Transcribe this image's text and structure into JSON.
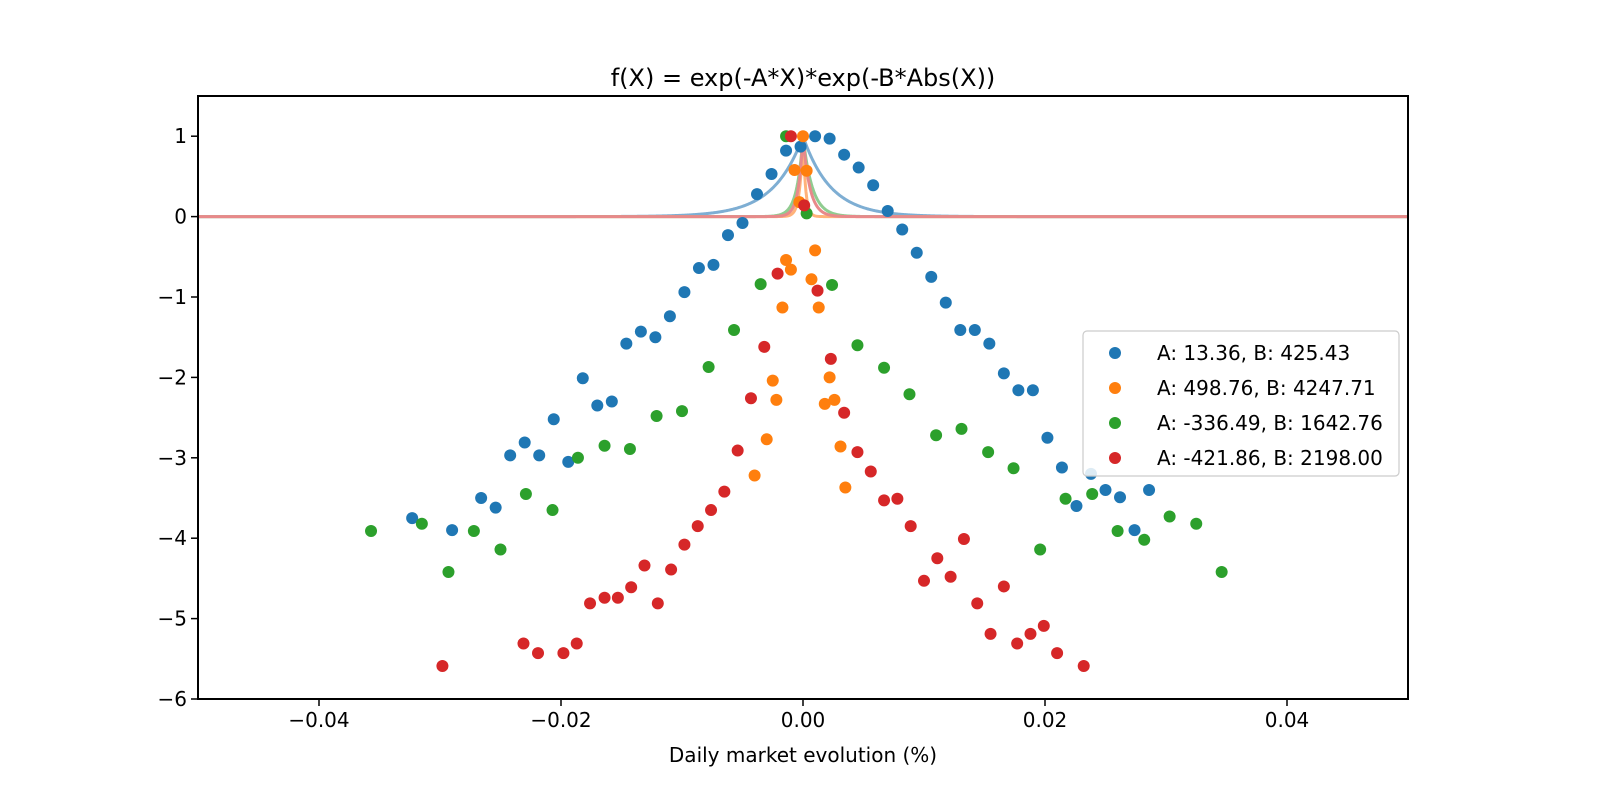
{
  "chart_data": {
    "type": "scatter",
    "title": "f(X) = exp(-A*X)*exp(-B*Abs(X))",
    "xlabel": "Daily market evolution (%)",
    "ylabel": "",
    "xlim": [
      -0.05,
      0.05
    ],
    "ylim": [
      -6,
      1.5
    ],
    "xticks": [
      -0.04,
      -0.02,
      0.0,
      0.02,
      0.04
    ],
    "xtick_labels": [
      "−0.04",
      "−0.02",
      "0.00",
      "0.02",
      "0.04"
    ],
    "yticks": [
      1,
      0,
      -1,
      -2,
      -3,
      -4,
      -5,
      -6
    ],
    "ytick_labels": [
      "1",
      "0",
      "−1",
      "−2",
      "−3",
      "−4",
      "−5",
      "−6"
    ],
    "grid": false,
    "legend_position": "center-right",
    "series": [
      {
        "name": "A: 13.36, B: 425.43",
        "A": 13.36,
        "B": 425.43,
        "color": "#1f77b4",
        "curve_color": "#7eaed3",
        "points": [
          [
            -0.0323,
            -3.75
          ],
          [
            -0.029,
            -3.9
          ],
          [
            -0.0266,
            -3.5
          ],
          [
            -0.0254,
            -3.62
          ],
          [
            -0.0242,
            -2.97
          ],
          [
            -0.023,
            -2.81
          ],
          [
            -0.0218,
            -2.97
          ],
          [
            -0.0206,
            -2.52
          ],
          [
            -0.0194,
            -3.05
          ],
          [
            -0.0182,
            -2.01
          ],
          [
            -0.017,
            -2.35
          ],
          [
            -0.0158,
            -2.3
          ],
          [
            -0.0146,
            -1.58
          ],
          [
            -0.0134,
            -1.43
          ],
          [
            -0.0122,
            -1.5
          ],
          [
            -0.011,
            -1.24
          ],
          [
            -0.0098,
            -0.94
          ],
          [
            -0.0086,
            -0.64
          ],
          [
            -0.0074,
            -0.6
          ],
          [
            -0.0062,
            -0.23
          ],
          [
            -0.005,
            -0.08
          ],
          [
            -0.0038,
            0.28
          ],
          [
            -0.0026,
            0.53
          ],
          [
            -0.0014,
            0.82
          ],
          [
            -0.0002,
            0.87
          ],
          [
            0.001,
            1.0
          ],
          [
            0.0022,
            0.97
          ],
          [
            0.0034,
            0.77
          ],
          [
            0.0046,
            0.61
          ],
          [
            0.0058,
            0.39
          ],
          [
            0.007,
            0.07
          ],
          [
            0.0082,
            -0.16
          ],
          [
            0.0094,
            -0.45
          ],
          [
            0.0106,
            -0.75
          ],
          [
            0.0118,
            -1.07
          ],
          [
            0.013,
            -1.41
          ],
          [
            0.0142,
            -1.41
          ],
          [
            0.0154,
            -1.58
          ],
          [
            0.0166,
            -1.95
          ],
          [
            0.0178,
            -2.16
          ],
          [
            0.019,
            -2.16
          ],
          [
            0.0202,
            -2.75
          ],
          [
            0.0214,
            -3.12
          ],
          [
            0.0226,
            -3.6
          ],
          [
            0.0238,
            -3.2
          ],
          [
            0.025,
            -3.4
          ],
          [
            0.0262,
            -3.49
          ],
          [
            0.0274,
            -3.9
          ],
          [
            0.0286,
            -3.4
          ]
        ]
      },
      {
        "name": "A: 498.76, B: 4247.71",
        "A": 498.76,
        "B": 4247.71,
        "color": "#ff7f0e",
        "curve_color": "#ffb27a",
        "points": [
          [
            -0.004,
            -3.22
          ],
          [
            -0.003,
            -2.77
          ],
          [
            -0.0025,
            -2.04
          ],
          [
            -0.0022,
            -2.28
          ],
          [
            -0.0017,
            -1.13
          ],
          [
            -0.0014,
            -0.54
          ],
          [
            -0.001,
            -0.66
          ],
          [
            -0.0007,
            0.58
          ],
          [
            -0.0003,
            0.18
          ],
          [
            0.0,
            1.0
          ],
          [
            0.0003,
            0.57
          ],
          [
            0.0007,
            -0.78
          ],
          [
            0.001,
            -0.42
          ],
          [
            0.0013,
            -1.13
          ],
          [
            0.0018,
            -2.33
          ],
          [
            0.0022,
            -2.0
          ],
          [
            0.0026,
            -2.28
          ],
          [
            0.0031,
            -2.86
          ],
          [
            0.0035,
            -3.37
          ]
        ]
      },
      {
        "name": "A: -336.49, B: 1642.76",
        "A": -336.49,
        "B": 1642.76,
        "color": "#2ca02c",
        "curve_color": "#90cc90",
        "points": [
          [
            -0.0357,
            -3.91
          ],
          [
            -0.0315,
            -3.82
          ],
          [
            -0.0293,
            -4.42
          ],
          [
            -0.0272,
            -3.91
          ],
          [
            -0.025,
            -4.14
          ],
          [
            -0.0229,
            -3.45
          ],
          [
            -0.0207,
            -3.65
          ],
          [
            -0.0186,
            -3.0
          ],
          [
            -0.0164,
            -2.85
          ],
          [
            -0.0143,
            -2.89
          ],
          [
            -0.0121,
            -2.48
          ],
          [
            -0.01,
            -2.42
          ],
          [
            -0.0078,
            -1.87
          ],
          [
            -0.0057,
            -1.41
          ],
          [
            -0.0035,
            -0.84
          ],
          [
            -0.0014,
            1.0
          ],
          [
            0.0003,
            0.04
          ],
          [
            0.0024,
            -0.85
          ],
          [
            0.0045,
            -1.6
          ],
          [
            0.0067,
            -1.88
          ],
          [
            0.0088,
            -2.21
          ],
          [
            0.011,
            -2.72
          ],
          [
            0.0131,
            -2.64
          ],
          [
            0.0153,
            -2.93
          ],
          [
            0.0174,
            -3.13
          ],
          [
            0.0196,
            -4.14
          ],
          [
            0.0217,
            -3.51
          ],
          [
            0.0239,
            -3.45
          ],
          [
            0.026,
            -3.91
          ],
          [
            0.0282,
            -4.02
          ],
          [
            0.0303,
            -3.73
          ],
          [
            0.0325,
            -3.82
          ],
          [
            0.0346,
            -4.42
          ]
        ]
      },
      {
        "name": "A: -421.86, B: 2198.00",
        "A": -421.86,
        "B": 2198.0,
        "color": "#d62728",
        "curve_color": "#e8898a",
        "points": [
          [
            -0.0298,
            -5.59
          ],
          [
            -0.0231,
            -5.31
          ],
          [
            -0.0219,
            -5.43
          ],
          [
            -0.0198,
            -5.43
          ],
          [
            -0.0187,
            -5.31
          ],
          [
            -0.0176,
            -4.81
          ],
          [
            -0.0164,
            -4.74
          ],
          [
            -0.0153,
            -4.74
          ],
          [
            -0.0142,
            -4.61
          ],
          [
            -0.0131,
            -4.34
          ],
          [
            -0.012,
            -4.81
          ],
          [
            -0.0109,
            -4.39
          ],
          [
            -0.0098,
            -4.08
          ],
          [
            -0.0087,
            -3.85
          ],
          [
            -0.0076,
            -3.65
          ],
          [
            -0.0065,
            -3.42
          ],
          [
            -0.0054,
            -2.91
          ],
          [
            -0.0043,
            -2.26
          ],
          [
            -0.0032,
            -1.62
          ],
          [
            -0.0021,
            -0.71
          ],
          [
            -0.001,
            1.0
          ],
          [
            0.0001,
            0.14
          ],
          [
            0.0012,
            -0.92
          ],
          [
            0.0023,
            -1.77
          ],
          [
            0.0034,
            -2.44
          ],
          [
            0.0045,
            -2.93
          ],
          [
            0.0056,
            -3.17
          ],
          [
            0.0067,
            -3.53
          ],
          [
            0.0078,
            -3.51
          ],
          [
            0.0089,
            -3.85
          ],
          [
            0.01,
            -4.53
          ],
          [
            0.0111,
            -4.25
          ],
          [
            0.0122,
            -4.48
          ],
          [
            0.0133,
            -4.01
          ],
          [
            0.0144,
            -4.81
          ],
          [
            0.0155,
            -5.19
          ],
          [
            0.0166,
            -4.6
          ],
          [
            0.0177,
            -5.31
          ],
          [
            0.0188,
            -5.19
          ],
          [
            0.0199,
            -5.09
          ],
          [
            0.021,
            -5.43
          ],
          [
            0.0232,
            -5.59
          ]
        ]
      }
    ]
  }
}
